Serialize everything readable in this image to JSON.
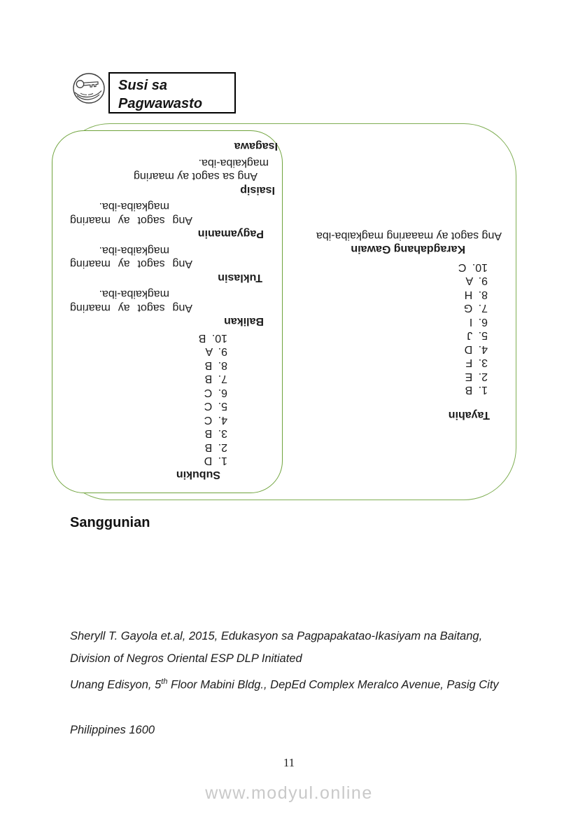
{
  "header": {
    "icon": "key-in-hand-icon",
    "title_line1": "Susi sa",
    "title_line2": "Pagwawasto"
  },
  "answer_key": {
    "subukin": {
      "heading": "Subukin",
      "items": [
        "1. D",
        "2. B",
        "3. B",
        "4. C",
        "5. C",
        "6. C",
        "7. B",
        "8. B",
        "9. A",
        "10. B"
      ]
    },
    "balikan": {
      "heading": "Balikan",
      "line1": "Ang sagot ay maaring",
      "line2": "magkaiba-iba."
    },
    "tuklasin": {
      "heading": "Tuklasin",
      "line1": "Ang sagot ay maaring",
      "line2": "magkaiba-iba."
    },
    "pagyamanin": {
      "heading": "Pagyamanin",
      "line1": "Ang sagot ay maaring",
      "line2": "magkaiba-iba."
    },
    "isaisip": {
      "heading": "Isaisip",
      "line1": "Ang sa sagot ay maaring",
      "line2": "magkaiba-iba."
    },
    "isagawa": {
      "heading": "Isagawa"
    },
    "tayahin": {
      "heading": "Tayahin",
      "items": [
        "1. B",
        "2. E",
        "3. F",
        "4. D",
        "5. J",
        "6. I",
        "7. G",
        "8. H",
        "9. A",
        "10. C"
      ],
      "subheading": "Karagdahang Gawain",
      "note": "Ang sagot ay maaaring magkaiba-iba"
    }
  },
  "sanggunian": {
    "heading": "Sanggunian",
    "ref_line1": "Sheryll T. Gayola et.al, 2015, Edukasyon sa Pagpapakatao-Ikasiyam na Baitang,",
    "ref_line2_pre": "Unang Edisyon, 5",
    "ref_line2_sup": "th",
    "ref_line2_post": " Floor Mabini Bldg., DepEd Complex Meralco Avenue, Pasig City",
    "ref_line3": "Philippines 1600",
    "division_line": "Division of Negros Oriental ESP DLP Initiated"
  },
  "footer": {
    "page_number": "11",
    "watermark": "www.modyul.online"
  },
  "colors": {
    "box_border_green": "#6fa33c",
    "watermark_gray": "#c9c9c9"
  }
}
